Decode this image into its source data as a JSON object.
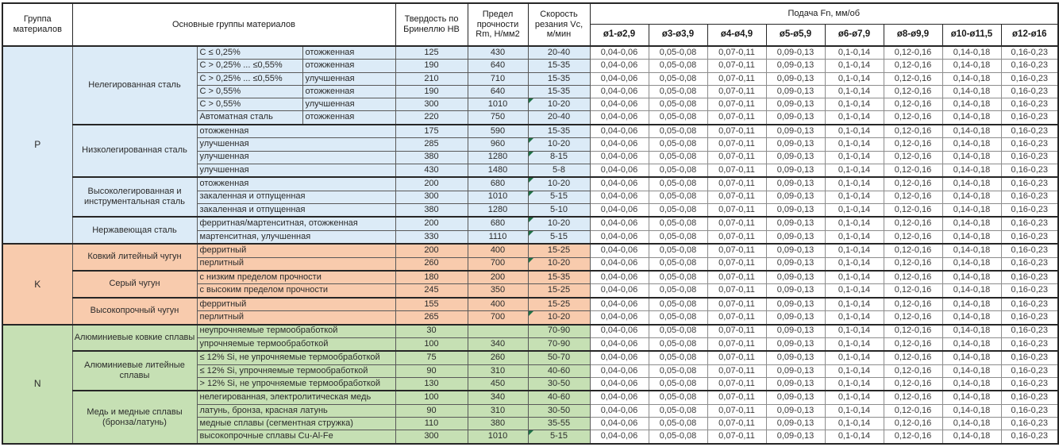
{
  "table": {
    "headers": {
      "group": "Группа материалов",
      "main": "Основные группы материалов",
      "hb": "Твердость по Бринеллю HB",
      "rm": "Предел прочности Rm, Н/мм2",
      "vc": "Скорость резания Vc, м/мин",
      "feed_title": "Подача Fn, мм/об",
      "feed_cols": [
        "ø1-ø2,9",
        "ø3-ø3,9",
        "ø4-ø4,9",
        "ø5-ø5,9",
        "ø6-ø7,9",
        "ø8-ø9,9",
        "ø10-ø11,5",
        "ø12-ø16"
      ]
    },
    "feed_values": [
      "0,04-0,06",
      "0,05-0,08",
      "0,07-0,11",
      "0,09-0,13",
      "0,1-0,14",
      "0,12-0,16",
      "0,14-0,18",
      "0,16-0,23"
    ],
    "colors": {
      "P": "#dcebf7",
      "K": "#f8cbad",
      "N": "#c6e0b4",
      "comment_marker": "#1e7145"
    },
    "sections": [
      {
        "code": "P",
        "groups": [
          {
            "name": "Нелегированная сталь",
            "rows": [
              {
                "desc": "C ≤ 0,25%",
                "state": "отожженная",
                "hb": "125",
                "rm": "430",
                "vc": "20-40",
                "note": false
              },
              {
                "desc": "C > 0,25% ... ≤0,55%",
                "state": "отожженная",
                "hb": "190",
                "rm": "640",
                "vc": "15-35",
                "note": false
              },
              {
                "desc": "C > 0,25% ... ≤0,55%",
                "state": "улучшенная",
                "hb": "210",
                "rm": "710",
                "vc": "15-35",
                "note": false
              },
              {
                "desc": "C > 0,55%",
                "state": "отожженная",
                "hb": "190",
                "rm": "640",
                "vc": "15-35",
                "note": false
              },
              {
                "desc": "C > 0,55%",
                "state": "улучшенная",
                "hb": "300",
                "rm": "1010",
                "vc": "10-20",
                "note": true
              },
              {
                "desc": "Автоматная сталь",
                "state": "отожженная",
                "hb": "220",
                "rm": "750",
                "vc": "20-40",
                "note": false
              }
            ]
          },
          {
            "name": "Низколегированная сталь",
            "rows": [
              {
                "desc": "отожженная",
                "hb": "175",
                "rm": "590",
                "vc": "15-35",
                "note": false
              },
              {
                "desc": "улучшенная",
                "hb": "285",
                "rm": "960",
                "vc": "10-20",
                "note": true
              },
              {
                "desc": "улучшенная",
                "hb": "380",
                "rm": "1280",
                "vc": "8-15",
                "note": true
              },
              {
                "desc": "улучшенная",
                "hb": "430",
                "rm": "1480",
                "vc": "5-8",
                "note": false
              }
            ]
          },
          {
            "name": "Высоколегированная и инструментальная сталь",
            "rows": [
              {
                "desc": "отожженная",
                "hb": "200",
                "rm": "680",
                "vc": "10-20",
                "note": true
              },
              {
                "desc": "закаленная и отпущенная",
                "hb": "300",
                "rm": "1010",
                "vc": "5-15",
                "note": true
              },
              {
                "desc": "закаленная и отпущенная",
                "hb": "380",
                "rm": "1280",
                "vc": "5-10",
                "note": false
              }
            ]
          },
          {
            "name": "Нержавеющая сталь",
            "rows": [
              {
                "desc": "ферритная/мартенситная, отожженная",
                "hb": "200",
                "rm": "680",
                "vc": "10-20",
                "note": true
              },
              {
                "desc": "мартенситная, улучшенная",
                "hb": "330",
                "rm": "1110",
                "vc": "5-15",
                "note": true
              }
            ]
          }
        ]
      },
      {
        "code": "K",
        "groups": [
          {
            "name": "Ковкий литейный чугун",
            "rows": [
              {
                "desc": "ферритный",
                "hb": "200",
                "rm": "400",
                "vc": "15-25",
                "note": false
              },
              {
                "desc": "перлитный",
                "hb": "260",
                "rm": "700",
                "vc": "10-20",
                "note": true
              }
            ]
          },
          {
            "name": "Серый чугун",
            "rows": [
              {
                "desc": "с низким пределом прочности",
                "hb": "180",
                "rm": "200",
                "vc": "15-35",
                "note": false
              },
              {
                "desc": "с высоким пределом прочности",
                "hb": "245",
                "rm": "350",
                "vc": "15-25",
                "note": false
              }
            ]
          },
          {
            "name": "Высокопрочный чугун",
            "rows": [
              {
                "desc": "ферритный",
                "hb": "155",
                "rm": "400",
                "vc": "15-25",
                "note": false
              },
              {
                "desc": "перлитный",
                "hb": "265",
                "rm": "700",
                "vc": "10-20",
                "note": true
              }
            ]
          }
        ]
      },
      {
        "code": "N",
        "groups": [
          {
            "name": "Алюминиевые ковкие сплавы",
            "rows": [
              {
                "desc": "неупрочняемые термообработкой",
                "hb": "30",
                "rm": "",
                "vc": "70-90",
                "note": false
              },
              {
                "desc": "упрочняемые термообработкой",
                "hb": "100",
                "rm": "340",
                "vc": "70-90",
                "note": false
              }
            ]
          },
          {
            "name": "Алюминиевые литейные сплавы",
            "rows": [
              {
                "desc": "≤ 12% Si, не упрочняемые термообработкой",
                "hb": "75",
                "rm": "260",
                "vc": "50-70",
                "note": false
              },
              {
                "desc": "≤ 12% Si, упрочняемые термообработкой",
                "hb": "90",
                "rm": "310",
                "vc": "40-60",
                "note": false
              },
              {
                "desc": "> 12% Si, не упрочняемые термообработкой",
                "hb": "130",
                "rm": "450",
                "vc": "30-50",
                "note": false
              }
            ]
          },
          {
            "name": "Медь и медные сплавы (бронза/латунь)",
            "rows": [
              {
                "desc": "нелегированная, электролитическая медь",
                "hb": "100",
                "rm": "340",
                "vc": "40-60",
                "note": false
              },
              {
                "desc": "латунь, бронза, красная латунь",
                "hb": "90",
                "rm": "310",
                "vc": "30-50",
                "note": false
              },
              {
                "desc": "медные сплавы (сегментная стружка)",
                "hb": "110",
                "rm": "380",
                "vc": "35-55",
                "note": false
              },
              {
                "desc": "высокопрочные сплавы Cu-Al-Fe",
                "hb": "300",
                "rm": "1010",
                "vc": "5-15",
                "note": true
              }
            ]
          }
        ]
      }
    ]
  }
}
